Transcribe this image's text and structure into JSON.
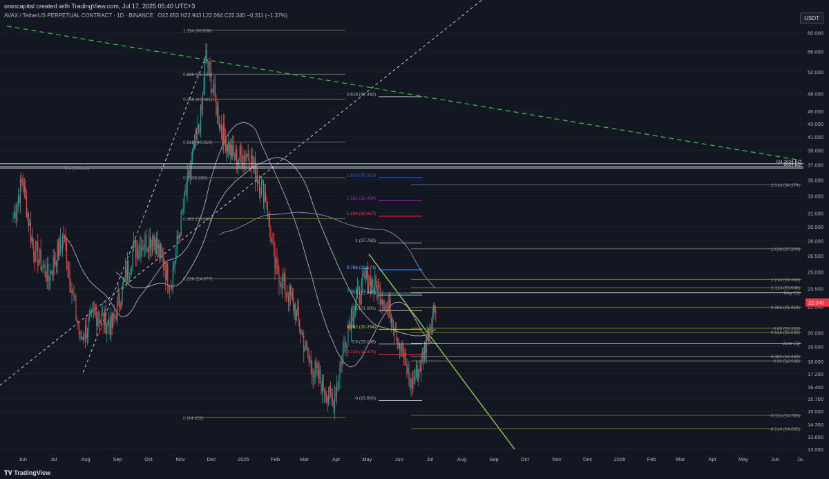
{
  "header": {
    "credit": "orancapital created with TradingView.com, Jul 17, 2025 05:40 UTC+3",
    "symbol": "AVAX / TetherUS PERPETUAL CONTRACT · 1D · BINANCE",
    "ohlc": "O22.653 H22.943 L22.064 C22.340 −0.311 (−1.37%)"
  },
  "currency_label": "USDT",
  "footer_brand": "TradingView",
  "colors": {
    "background": "#131722",
    "up": "#26a69a",
    "down": "#ef5350",
    "fib_olive": "#7a7a3a",
    "trend_green": "#8bc34a",
    "dashed_green": "#4caf50",
    "ma": "#d1c4e9"
  },
  "chart_data": {
    "type": "candlestick",
    "y_axis_scale": "log",
    "ylim": [
      13.05,
      64.0
    ],
    "price_axis_ticks": [
      "60.000",
      "56.000",
      "52.000",
      "48.000",
      "45.000",
      "43.000",
      "41.000",
      "39.000",
      "37.000",
      "35.000",
      "33.000",
      "31.000",
      "29.500",
      "28.000",
      "26.500",
      "25.000",
      "23.500",
      "22.000",
      "20.000",
      "19.000",
      "18.000",
      "17.200",
      "16.400",
      "15.700",
      "15.000",
      "14.300",
      "13.650",
      "13.050"
    ],
    "time_axis_ticks": [
      "Jun",
      "Jul",
      "Aug",
      "Sep",
      "Oct",
      "Nov",
      "Dec",
      "2025",
      "Feb",
      "Mar",
      "Apr",
      "May",
      "Jun",
      "Jul",
      "Aug",
      "Sep",
      "Oct",
      "Nov",
      "Dec",
      "2026",
      "Feb",
      "Mar",
      "Apr",
      "May",
      "Jun",
      "Ju"
    ],
    "last_price": "22.340",
    "price_path": [
      {
        "t": "2024-06-01",
        "p": 30.5
      },
      {
        "t": "2024-06-10",
        "p": 35.0
      },
      {
        "t": "2024-06-20",
        "p": 27.5
      },
      {
        "t": "2024-07-05",
        "p": 24.5
      },
      {
        "t": "2024-07-20",
        "p": 28.5
      },
      {
        "t": "2024-08-05",
        "p": 19.5
      },
      {
        "t": "2024-08-20",
        "p": 21.5
      },
      {
        "t": "2024-09-05",
        "p": 20.5
      },
      {
        "t": "2024-09-25",
        "p": 27.0
      },
      {
        "t": "2024-10-15",
        "p": 28.5
      },
      {
        "t": "2024-11-01",
        "p": 24.0
      },
      {
        "t": "2024-11-15",
        "p": 33.0
      },
      {
        "t": "2024-12-01",
        "p": 45.0
      },
      {
        "t": "2024-12-05",
        "p": 55.0
      },
      {
        "t": "2024-12-20",
        "p": 42.0
      },
      {
        "t": "2025-01-01",
        "p": 38.0
      },
      {
        "t": "2025-01-15",
        "p": 38.5
      },
      {
        "t": "2025-02-01",
        "p": 33.0
      },
      {
        "t": "2025-02-10",
        "p": 25.5
      },
      {
        "t": "2025-03-01",
        "p": 22.0
      },
      {
        "t": "2025-03-15",
        "p": 18.0
      },
      {
        "t": "2025-04-07",
        "p": 15.5
      },
      {
        "t": "2025-04-25",
        "p": 21.5
      },
      {
        "t": "2025-05-10",
        "p": 24.5
      },
      {
        "t": "2025-05-25",
        "p": 23.0
      },
      {
        "t": "2025-06-05",
        "p": 21.0
      },
      {
        "t": "2025-06-22",
        "p": 16.5
      },
      {
        "t": "2025-07-01",
        "p": 17.8
      },
      {
        "t": "2025-07-10",
        "p": 20.5
      },
      {
        "t": "2025-07-16",
        "p": 22.34
      }
    ],
    "fib_labels_left": [
      {
        "label": "1.114 (60.558)",
        "price": 60.558
      },
      {
        "label": "0.886 (51.562)",
        "price": 51.562
      },
      {
        "label": "0.786 (47.061)",
        "price": 47.061
      },
      {
        "label": "0.618 (40.219)",
        "price": 40.219
      },
      {
        "label": "0.5 (36.556)",
        "price": 36.556
      },
      {
        "label": "0.5 (35.286)",
        "price": 35.286
      },
      {
        "label": "0.382 (30.360)",
        "price": 30.36
      },
      {
        "label": "0.236 (24.377)",
        "price": 24.377
      },
      {
        "label": "0 (14.652)",
        "price": 14.652
      }
    ],
    "fib_labels_mid": [
      {
        "label": "2.618 (47.492)",
        "price": 47.492,
        "color": "#b2b5be"
      },
      {
        "label": "1.618 (35.310)",
        "price": 35.31,
        "color": "#2962ff"
      },
      {
        "label": "1.382 (32.434)",
        "price": 32.434,
        "color": "#9c27b0"
      },
      {
        "label": "1.236 (30.657)",
        "price": 30.657,
        "color": "#f23645"
      },
      {
        "label": "1 (27.782)",
        "price": 27.782,
        "color": "#b2b5be"
      },
      {
        "label": "0.786 (25.173)",
        "price": 25.173,
        "color": "#64b5f6"
      },
      {
        "label": "0.618 (23.128)",
        "price": 23.128,
        "color": "#26a69a"
      },
      {
        "label": "0.5 (22.949)",
        "price": 22.949,
        "color": "#b2b5be"
      },
      {
        "label": "0.5 (21.691)",
        "price": 21.691,
        "color": "#8bc34a"
      },
      {
        "label": "0.382 (20.254)",
        "price": 20.254,
        "color": "#cddc39"
      },
      {
        "label": "0.5 (19.186)",
        "price": 19.186,
        "color": "#b2b5be"
      },
      {
        "label": "0.236 (18.475)",
        "price": 18.475,
        "color": "#f23645"
      },
      {
        "label": "0 (15.600)",
        "price": 15.6,
        "color": "#b2b5be"
      }
    ],
    "fib_labels_right": [
      {
        "label": "2.618 (34.374)",
        "price": 34.374
      },
      {
        "label": "1.618 (27.203)",
        "price": 27.203
      },
      {
        "label": "1.214 (24.306)",
        "price": 24.306
      },
      {
        "label": "1.114 (23.588)",
        "price": 23.588
      },
      {
        "label": "May EQ",
        "price": 23.15
      },
      {
        "label": "0.886 (21.954)",
        "price": 21.954
      },
      {
        "label": "0.66 (20.333)",
        "price": 20.333
      },
      {
        "label": "0.618 (20.032)",
        "price": 20.032
      },
      {
        "label": "June EQ",
        "price": 19.25
      },
      {
        "label": "0.382 (18.339)",
        "price": 18.339
      },
      {
        "label": "0.34 (18.038)",
        "price": 18.038
      },
      {
        "label": "-0.114 (14.783)",
        "price": 14.783
      },
      {
        "label": "-0.214 (14.065)",
        "price": 14.065
      }
    ],
    "horizontal_labels": [
      {
        "label": "Q4 2024 EQ",
        "price": 37.15
      },
      {
        "label": "2024 EQ",
        "price": 36.75
      }
    ]
  }
}
